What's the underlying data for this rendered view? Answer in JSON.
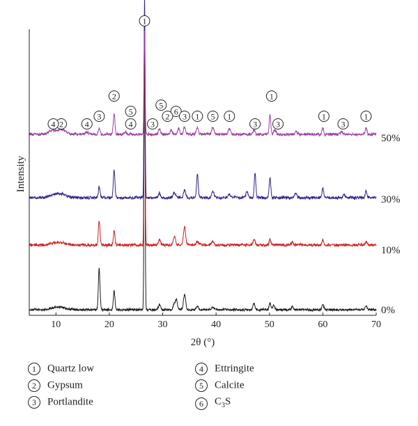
{
  "chart_data": {
    "type": "line",
    "xlabel": "2θ (°)",
    "ylabel": "Intensity",
    "xlim": [
      5,
      70
    ],
    "xticks": [
      10,
      20,
      30,
      40,
      50,
      60,
      70
    ],
    "series": [
      {
        "name": "0%",
        "color": "#1a1a1a",
        "offset": 0,
        "noise": 1.2,
        "peaks": [
          [
            10.5,
            4,
            1.2
          ],
          [
            18.1,
            60,
            0.15
          ],
          [
            20.9,
            28,
            0.15
          ],
          [
            26.6,
            380,
            0.1
          ],
          [
            29.4,
            8,
            0.2
          ],
          [
            32.2,
            10,
            0.2
          ],
          [
            32.6,
            14,
            0.15
          ],
          [
            34.1,
            22,
            0.2
          ],
          [
            36.5,
            5,
            0.2
          ],
          [
            39.4,
            4,
            0.2
          ],
          [
            47.1,
            8,
            0.2
          ],
          [
            50.1,
            10,
            0.15
          ],
          [
            50.8,
            6,
            0.2
          ],
          [
            54.3,
            4,
            0.2
          ],
          [
            60.0,
            8,
            0.15
          ],
          [
            68.1,
            5,
            0.2
          ]
        ]
      },
      {
        "name": "10%",
        "color": "#cc1f1f",
        "offset": 1,
        "noise": 1.4,
        "peaks": [
          [
            10.5,
            4,
            1.2
          ],
          [
            18.1,
            35,
            0.15
          ],
          [
            20.9,
            20,
            0.15
          ],
          [
            26.6,
            320,
            0.1
          ],
          [
            29.4,
            8,
            0.2
          ],
          [
            32.2,
            12,
            0.2
          ],
          [
            34.1,
            26,
            0.2
          ],
          [
            36.5,
            5,
            0.2
          ],
          [
            39.4,
            5,
            0.2
          ],
          [
            47.1,
            8,
            0.2
          ],
          [
            50.1,
            8,
            0.15
          ],
          [
            54.3,
            4,
            0.2
          ],
          [
            60.0,
            7,
            0.15
          ],
          [
            68.1,
            5,
            0.2
          ]
        ]
      },
      {
        "name": "30%",
        "color": "#2e2590",
        "offset": 2,
        "noise": 1.5,
        "peaks": [
          [
            10.5,
            6,
            1.2
          ],
          [
            18.1,
            16,
            0.15
          ],
          [
            20.9,
            40,
            0.15
          ],
          [
            26.6,
            290,
            0.1
          ],
          [
            29.4,
            6,
            0.2
          ],
          [
            32.2,
            8,
            0.2
          ],
          [
            34.1,
            12,
            0.2
          ],
          [
            36.5,
            34,
            0.15
          ],
          [
            39.4,
            10,
            0.2
          ],
          [
            42.5,
            6,
            0.2
          ],
          [
            45.8,
            8,
            0.2
          ],
          [
            47.3,
            36,
            0.15
          ],
          [
            50.1,
            28,
            0.15
          ],
          [
            54.9,
            6,
            0.2
          ],
          [
            60.0,
            14,
            0.15
          ],
          [
            64.0,
            5,
            0.2
          ],
          [
            68.1,
            10,
            0.15
          ]
        ]
      },
      {
        "name": "50%",
        "color": "#9a3fa0",
        "offset": 3,
        "noise": 1.4,
        "peaks": [
          [
            9.2,
            5,
            0.6
          ],
          [
            11.0,
            7,
            0.8
          ],
          [
            15.8,
            4,
            0.3
          ],
          [
            18.1,
            10,
            0.15
          ],
          [
            20.9,
            30,
            0.15
          ],
          [
            23.0,
            4,
            0.2
          ],
          [
            26.6,
            150,
            0.1
          ],
          [
            29.4,
            8,
            0.2
          ],
          [
            31.6,
            6,
            0.2
          ],
          [
            33.0,
            8,
            0.2
          ],
          [
            34.1,
            10,
            0.2
          ],
          [
            36.5,
            10,
            0.2
          ],
          [
            39.4,
            10,
            0.2
          ],
          [
            42.5,
            8,
            0.2
          ],
          [
            47.1,
            6,
            0.2
          ],
          [
            50.1,
            28,
            0.15
          ],
          [
            51.0,
            6,
            0.2
          ],
          [
            55.0,
            4,
            0.2
          ],
          [
            60.0,
            10,
            0.15
          ],
          [
            63.5,
            4,
            0.2
          ],
          [
            68.1,
            10,
            0.15
          ]
        ]
      }
    ],
    "peak_labels": [
      {
        "x": 26.6,
        "text": "1",
        "row": 0
      },
      {
        "x": 20.9,
        "text": "2",
        "row": 1
      },
      {
        "x": 29.7,
        "text": "5",
        "row": 2
      },
      {
        "x": 24.0,
        "text": "5",
        "row": 3
      },
      {
        "x": 32.5,
        "text": "6",
        "row": 3
      },
      {
        "x": 30.9,
        "text": "2",
        "row": 4
      },
      {
        "x": 18.1,
        "text": "3",
        "row": 4
      },
      {
        "x": 11.0,
        "text": "2",
        "row": 5
      },
      {
        "x": 9.5,
        "text": "4",
        "row": 5
      },
      {
        "x": 15.8,
        "text": "4",
        "row": 5
      },
      {
        "x": 24.0,
        "text": "4",
        "row": 5
      },
      {
        "x": 28.1,
        "text": "3",
        "row": 5
      },
      {
        "x": 34.1,
        "text": "3",
        "row": 4
      },
      {
        "x": 36.5,
        "text": "1",
        "row": 4
      },
      {
        "x": 39.4,
        "text": "5",
        "row": 4
      },
      {
        "x": 42.5,
        "text": "1",
        "row": 4
      },
      {
        "x": 47.3,
        "text": "3",
        "row": 5
      },
      {
        "x": 50.4,
        "text": "1",
        "row": 1
      },
      {
        "x": 51.6,
        "text": "3",
        "row": 5
      },
      {
        "x": 60.2,
        "text": "1",
        "row": 4
      },
      {
        "x": 63.8,
        "text": "3",
        "row": 5
      },
      {
        "x": 68.1,
        "text": "1",
        "row": 4
      }
    ]
  },
  "legend": [
    {
      "num": "1",
      "label": "Quartz low"
    },
    {
      "num": "2",
      "label": "Gypsum"
    },
    {
      "num": "3",
      "label": "Portlandite"
    },
    {
      "num": "4",
      "label": "Ettringite"
    },
    {
      "num": "5",
      "label": "Calcite"
    },
    {
      "num": "6",
      "label_main": "C",
      "label_sub": "3",
      "label_tail": "S"
    }
  ]
}
